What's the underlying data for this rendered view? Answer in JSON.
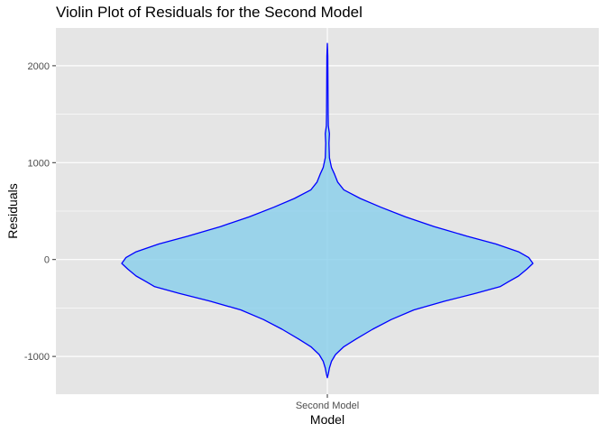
{
  "chart_data": {
    "type": "violin",
    "title": "Violin Plot of Residuals for the Second Model",
    "xlabel": "Model",
    "ylabel": "Residuals",
    "categories": [
      "Second Model"
    ],
    "ylim": [
      -1390,
      2390
    ],
    "y_ticks": [
      -1000,
      0,
      1000,
      2000
    ],
    "y_tick_labels": [
      "-1000",
      "0",
      "1000",
      "2000"
    ],
    "grid": true,
    "legend": "none",
    "fill_color": "#87CEEB",
    "fill_opacity": 0.8,
    "outline_color": "#0000FF",
    "panel_bg": "#E5E5E5",
    "grid_color": "#FFFFFF",
    "density_profile": [
      {
        "y": -1220,
        "w": 0.0
      },
      {
        "y": -1180,
        "w": 0.005
      },
      {
        "y": -1120,
        "w": 0.01
      },
      {
        "y": -1050,
        "w": 0.02
      },
      {
        "y": -980,
        "w": 0.04
      },
      {
        "y": -900,
        "w": 0.08
      },
      {
        "y": -820,
        "w": 0.14
      },
      {
        "y": -720,
        "w": 0.22
      },
      {
        "y": -620,
        "w": 0.31
      },
      {
        "y": -520,
        "w": 0.42
      },
      {
        "y": -430,
        "w": 0.57
      },
      {
        "y": -350,
        "w": 0.72
      },
      {
        "y": -280,
        "w": 0.84
      },
      {
        "y": -230,
        "w": 0.88
      },
      {
        "y": -170,
        "w": 0.93
      },
      {
        "y": -100,
        "w": 0.97
      },
      {
        "y": -40,
        "w": 1.0
      },
      {
        "y": 20,
        "w": 0.98
      },
      {
        "y": 80,
        "w": 0.93
      },
      {
        "y": 160,
        "w": 0.82
      },
      {
        "y": 240,
        "w": 0.68
      },
      {
        "y": 340,
        "w": 0.52
      },
      {
        "y": 440,
        "w": 0.38
      },
      {
        "y": 540,
        "w": 0.26
      },
      {
        "y": 630,
        "w": 0.16
      },
      {
        "y": 720,
        "w": 0.08
      },
      {
        "y": 800,
        "w": 0.05
      },
      {
        "y": 880,
        "w": 0.035
      },
      {
        "y": 950,
        "w": 0.02
      },
      {
        "y": 1050,
        "w": 0.01
      },
      {
        "y": 1200,
        "w": 0.008
      },
      {
        "y": 1300,
        "w": 0.01
      },
      {
        "y": 1380,
        "w": 0.005
      },
      {
        "y": 1500,
        "w": 0.004
      },
      {
        "y": 1800,
        "w": 0.003
      },
      {
        "y": 2100,
        "w": 0.002
      },
      {
        "y": 2230,
        "w": 0.0
      }
    ]
  }
}
